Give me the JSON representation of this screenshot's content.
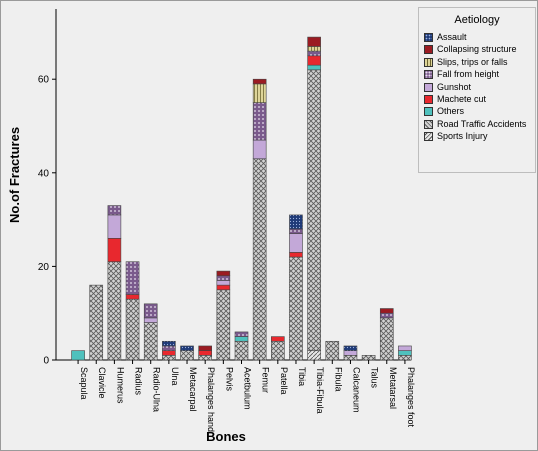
{
  "chart_data": {
    "type": "bar",
    "stacked": true,
    "xlabel": "Bones",
    "ylabel": "No.of Fractures",
    "ylim": [
      0,
      75
    ],
    "yticks": [
      0,
      20,
      40,
      60
    ],
    "legend_title": "Aetiology",
    "legend_position": "top-right",
    "categories": [
      "Scapula",
      "Clavicle",
      "Humerus",
      "Radius",
      "Radio-Ulna",
      "Ulna",
      "Metacarpal",
      "Phalanges hand",
      "Pelvis",
      "Acetbulum",
      "Femur",
      "Patella",
      "Tibia",
      "Tibia-Fibula",
      "Fibula",
      "Calcaneum",
      "Talus",
      "Metatarsal",
      "Phalanges foot"
    ],
    "series": [
      {
        "name": "Sports Injury",
        "color": "#d0d0d0",
        "values": [
          0,
          0,
          0,
          0,
          0,
          0,
          0,
          0,
          0,
          0,
          0,
          0,
          0,
          2,
          0,
          0,
          0,
          0,
          0
        ]
      },
      {
        "name": "Road Traffic Accidents",
        "color": "#cfcfcf",
        "values": [
          0,
          16,
          21,
          13,
          8,
          1,
          2,
          1,
          15,
          4,
          43,
          4,
          22,
          60,
          4,
          1,
          1,
          9,
          1
        ]
      },
      {
        "name": "Others",
        "color": "#4fc1bd",
        "values": [
          2,
          0,
          0,
          0,
          0,
          0,
          0,
          0,
          0,
          1,
          0,
          0,
          0,
          1,
          0,
          0,
          0,
          0,
          1
        ]
      },
      {
        "name": "Machete cut",
        "color": "#e8282e",
        "values": [
          0,
          0,
          5,
          1,
          0,
          1,
          0,
          1,
          1,
          0,
          0,
          1,
          1,
          2,
          0,
          0,
          0,
          0,
          0
        ]
      },
      {
        "name": "Gunshot",
        "color": "#c3a8d8",
        "values": [
          0,
          0,
          5,
          0,
          1,
          0,
          0,
          0,
          1,
          0,
          4,
          0,
          4,
          0,
          0,
          1,
          0,
          0,
          1
        ]
      },
      {
        "name": "Fall from height",
        "color": "#7a5a8c",
        "values": [
          0,
          0,
          2,
          7,
          3,
          1,
          0,
          0,
          1,
          1,
          8,
          0,
          1,
          1,
          0,
          0,
          0,
          1,
          0
        ]
      },
      {
        "name": "Slips, trips or falls",
        "color": "#ded59a",
        "values": [
          0,
          0,
          0,
          0,
          0,
          0,
          0,
          0,
          0,
          0,
          4,
          0,
          0,
          1,
          0,
          0,
          0,
          0,
          0
        ]
      },
      {
        "name": "Collapsing structure",
        "color": "#9b1b22",
        "values": [
          0,
          0,
          0,
          0,
          0,
          0,
          0,
          1,
          1,
          0,
          1,
          0,
          0,
          2,
          0,
          0,
          0,
          1,
          0
        ]
      },
      {
        "name": "Assault",
        "color": "#1f3a78",
        "values": [
          0,
          0,
          0,
          0,
          0,
          1,
          1,
          0,
          0,
          0,
          0,
          0,
          3,
          0,
          0,
          1,
          0,
          0,
          0
        ]
      }
    ]
  }
}
